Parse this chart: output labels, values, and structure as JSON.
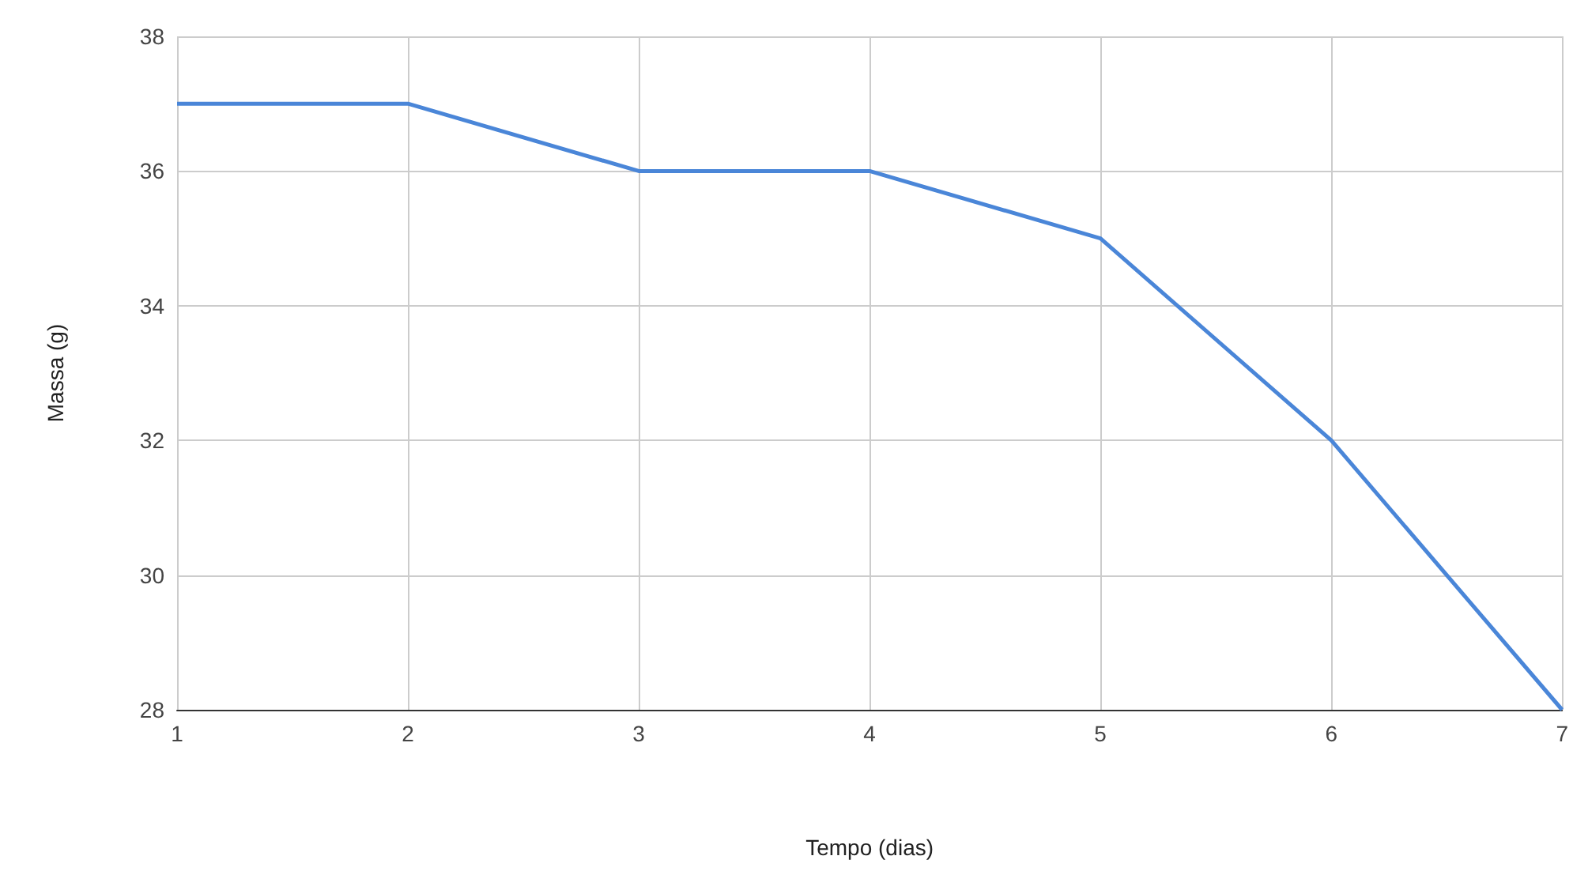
{
  "chart_data": {
    "type": "line",
    "xlabel": "Tempo (dias)",
    "ylabel": "Massa (g)",
    "x": [
      1,
      2,
      3,
      4,
      5,
      6,
      7
    ],
    "series": [
      {
        "color": "#4a86d8",
        "values": [
          37,
          37,
          36,
          36,
          35,
          32,
          28
        ]
      }
    ],
    "xlim": [
      1,
      7
    ],
    "xticks": [
      1,
      2,
      3,
      4,
      5,
      6,
      7
    ],
    "ylim": [
      28,
      38
    ],
    "yticks": [
      28,
      30,
      32,
      34,
      36,
      38
    ],
    "grid": true,
    "marker": "none",
    "line_style": "solid"
  }
}
